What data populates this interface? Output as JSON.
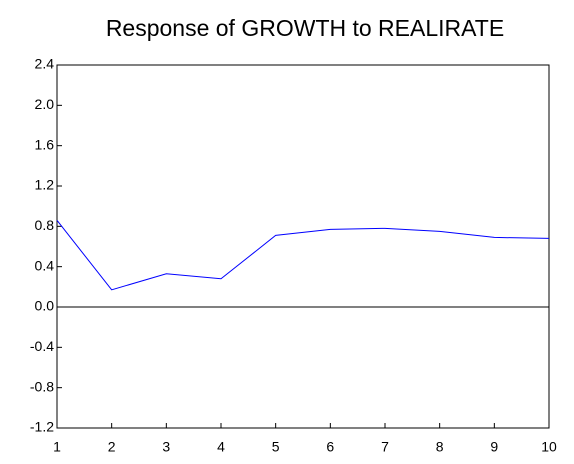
{
  "chart_data": {
    "type": "line",
    "title": "Response of GROWTH to REALIRATE",
    "x": [
      1,
      2,
      3,
      4,
      5,
      6,
      7,
      8,
      9,
      10
    ],
    "series": [
      {
        "name": "GROWTH",
        "color": "#0000ff",
        "values": [
          0.86,
          0.17,
          0.33,
          0.28,
          0.71,
          0.77,
          0.78,
          0.75,
          0.69,
          0.68
        ]
      }
    ],
    "xlim": [
      1,
      10
    ],
    "xticks": [
      1,
      2,
      3,
      4,
      5,
      6,
      7,
      8,
      9,
      10
    ],
    "ylim": [
      -1.2,
      2.4
    ],
    "yticks": [
      -1.2,
      -0.8,
      -0.4,
      {
        "value": 0,
        "label": "0.0"
      },
      0.4,
      0.8,
      1.2,
      1.6,
      {
        "value": 2,
        "label": "2.0"
      },
      2.4
    ],
    "grid": false
  }
}
